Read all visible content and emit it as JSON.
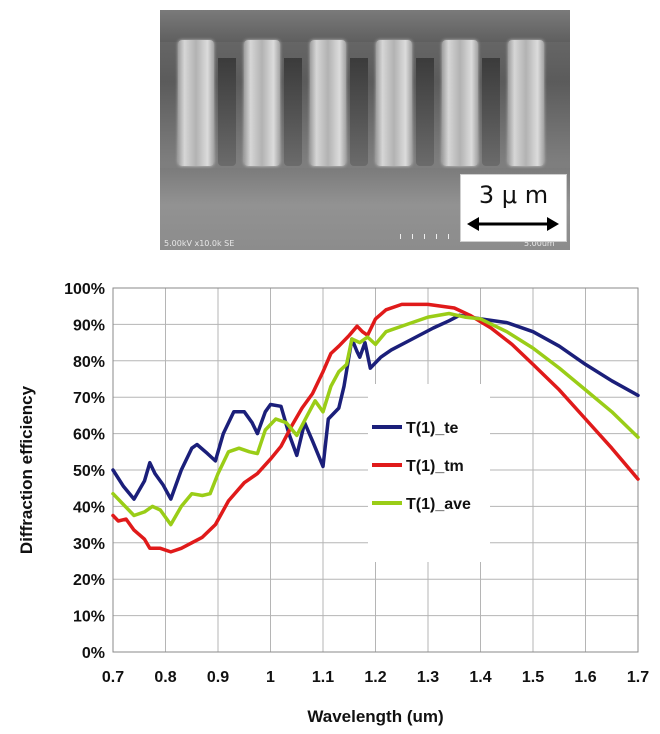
{
  "sem_image": {
    "scale_label": "3 μ m",
    "footer_left": "5.00kV x10.0k SE",
    "footer_right": "5.00um"
  },
  "chart_data": {
    "type": "line",
    "xlabel": "Wavelength (um)",
    "ylabel": "Diffraction efficiency",
    "xlim": [
      0.7,
      1.7
    ],
    "ylim": [
      0,
      100
    ],
    "x_ticks": [
      "0.7",
      "0.8",
      "0.9",
      "1",
      "1.1",
      "1.2",
      "1.3",
      "1.4",
      "1.5",
      "1.6",
      "1.7"
    ],
    "y_ticks": [
      "0%",
      "10%",
      "20%",
      "30%",
      "40%",
      "50%",
      "60%",
      "70%",
      "80%",
      "90%",
      "100%"
    ],
    "grid": true,
    "legend_position": "center-right",
    "series": [
      {
        "name": "T(1)_te",
        "color": "#1b1f7a",
        "points": [
          [
            0.7,
            50
          ],
          [
            0.72,
            45.5
          ],
          [
            0.74,
            42
          ],
          [
            0.76,
            47
          ],
          [
            0.77,
            52
          ],
          [
            0.78,
            49
          ],
          [
            0.795,
            46
          ],
          [
            0.81,
            42
          ],
          [
            0.83,
            50
          ],
          [
            0.85,
            56
          ],
          [
            0.86,
            57
          ],
          [
            0.88,
            54.5
          ],
          [
            0.895,
            52.5
          ],
          [
            0.91,
            60
          ],
          [
            0.93,
            66
          ],
          [
            0.95,
            66
          ],
          [
            0.965,
            63
          ],
          [
            0.975,
            60
          ],
          [
            0.99,
            66
          ],
          [
            1.0,
            68
          ],
          [
            1.02,
            67.5
          ],
          [
            1.035,
            60
          ],
          [
            1.05,
            54
          ],
          [
            1.065,
            63
          ],
          [
            1.08,
            58
          ],
          [
            1.1,
            51
          ],
          [
            1.11,
            64
          ],
          [
            1.13,
            67
          ],
          [
            1.14,
            73
          ],
          [
            1.155,
            86
          ],
          [
            1.165,
            82.5
          ],
          [
            1.17,
            81
          ],
          [
            1.18,
            85
          ],
          [
            1.19,
            78
          ],
          [
            1.21,
            81
          ],
          [
            1.23,
            83
          ],
          [
            1.27,
            86
          ],
          [
            1.31,
            89
          ],
          [
            1.34,
            91
          ],
          [
            1.36,
            92.5
          ],
          [
            1.4,
            91.5
          ],
          [
            1.45,
            90.5
          ],
          [
            1.5,
            88
          ],
          [
            1.55,
            84
          ],
          [
            1.6,
            79
          ],
          [
            1.65,
            74.5
          ],
          [
            1.7,
            70.5
          ]
        ]
      },
      {
        "name": "T(1)_tm",
        "color": "#e01a1a",
        "points": [
          [
            0.7,
            37.5
          ],
          [
            0.71,
            36
          ],
          [
            0.725,
            36.5
          ],
          [
            0.74,
            33.5
          ],
          [
            0.76,
            31
          ],
          [
            0.77,
            28.5
          ],
          [
            0.79,
            28.5
          ],
          [
            0.81,
            27.5
          ],
          [
            0.83,
            28.5
          ],
          [
            0.85,
            30
          ],
          [
            0.87,
            31.5
          ],
          [
            0.895,
            35
          ],
          [
            0.92,
            41.5
          ],
          [
            0.95,
            46.5
          ],
          [
            0.975,
            49
          ],
          [
            1.0,
            53
          ],
          [
            1.02,
            56.5
          ],
          [
            1.04,
            62
          ],
          [
            1.06,
            67
          ],
          [
            1.08,
            71
          ],
          [
            1.1,
            77
          ],
          [
            1.115,
            82
          ],
          [
            1.13,
            84
          ],
          [
            1.15,
            87
          ],
          [
            1.165,
            89.5
          ],
          [
            1.175,
            88
          ],
          [
            1.185,
            87
          ],
          [
            1.2,
            91.5
          ],
          [
            1.22,
            94
          ],
          [
            1.25,
            95.5
          ],
          [
            1.3,
            95.5
          ],
          [
            1.35,
            94.5
          ],
          [
            1.38,
            92.5
          ],
          [
            1.42,
            89
          ],
          [
            1.46,
            84.5
          ],
          [
            1.5,
            79
          ],
          [
            1.55,
            72
          ],
          [
            1.6,
            64
          ],
          [
            1.65,
            56
          ],
          [
            1.7,
            47.5
          ]
        ]
      },
      {
        "name": "T(1)_ave",
        "color": "#9acd17",
        "points": [
          [
            0.7,
            43.5
          ],
          [
            0.72,
            40.5
          ],
          [
            0.74,
            37.5
          ],
          [
            0.76,
            38.5
          ],
          [
            0.775,
            40
          ],
          [
            0.79,
            39
          ],
          [
            0.81,
            35
          ],
          [
            0.83,
            40
          ],
          [
            0.85,
            43.5
          ],
          [
            0.87,
            43
          ],
          [
            0.885,
            43.5
          ],
          [
            0.9,
            49
          ],
          [
            0.92,
            55
          ],
          [
            0.94,
            56
          ],
          [
            0.96,
            55
          ],
          [
            0.975,
            54.5
          ],
          [
            0.99,
            61
          ],
          [
            1.01,
            64
          ],
          [
            1.03,
            63
          ],
          [
            1.05,
            59.5
          ],
          [
            1.07,
            65
          ],
          [
            1.085,
            69
          ],
          [
            1.1,
            66
          ],
          [
            1.115,
            73
          ],
          [
            1.13,
            77
          ],
          [
            1.145,
            79
          ],
          [
            1.155,
            86
          ],
          [
            1.17,
            85
          ],
          [
            1.185,
            86.5
          ],
          [
            1.2,
            84.5
          ],
          [
            1.22,
            88
          ],
          [
            1.26,
            90
          ],
          [
            1.3,
            92
          ],
          [
            1.34,
            93
          ],
          [
            1.37,
            92
          ],
          [
            1.4,
            91.5
          ],
          [
            1.45,
            88
          ],
          [
            1.5,
            83.5
          ],
          [
            1.55,
            78
          ],
          [
            1.6,
            72
          ],
          [
            1.65,
            66
          ],
          [
            1.7,
            59
          ]
        ]
      }
    ]
  }
}
